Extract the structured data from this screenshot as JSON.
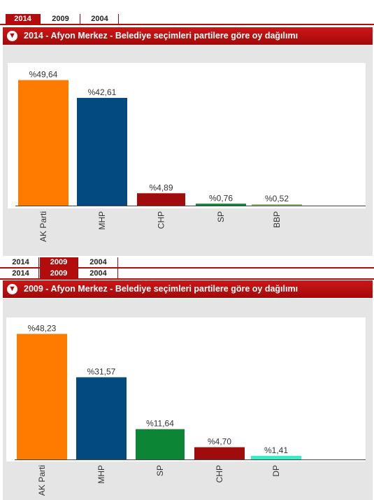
{
  "tabs": [
    {
      "label": "2014"
    },
    {
      "label": "2009"
    },
    {
      "label": "2004"
    }
  ],
  "charts": [
    {
      "title": "2014 - Afyon Merkez - Belediye seçimleri partilere göre oy dağılımı"
    },
    {
      "title": "2009 - Afyon Merkez - Belediye seçimleri partilere göre oy dağılımı"
    }
  ],
  "colors": {
    "header": "#b30c0c",
    "ak_parti": "#ff7b00",
    "mhp": "#034a80",
    "chp": "#a00c0c",
    "sp": "#0c8534",
    "bbp": "#8fba7a",
    "dp": "#33f0c4"
  },
  "chart_data": [
    {
      "type": "bar",
      "title": "2014 - Afyon Merkez - Belediye seçimleri partilere göre oy dağılımı",
      "categories": [
        "AK Parti",
        "MHP",
        "CHP",
        "SP",
        "BBP"
      ],
      "values": [
        49.64,
        42.61,
        4.89,
        0.76,
        0.52
      ],
      "labels": [
        "%49,64",
        "%42,61",
        "%4,89",
        "%0,76",
        "%0,52"
      ],
      "colors": [
        "#ff7b00",
        "#034a80",
        "#a00c0c",
        "#0c8534",
        "#8fba7a"
      ],
      "ylim": [
        0,
        52
      ],
      "grid": false
    },
    {
      "type": "bar",
      "title": "2009 - Afyon Merkez - Belediye seçimleri partilere göre oy dağılımı",
      "categories": [
        "AK Parti",
        "MHP",
        "SP",
        "CHP",
        "DP"
      ],
      "values": [
        48.23,
        31.57,
        11.64,
        4.7,
        1.41
      ],
      "labels": [
        "%48,23",
        "%31,57",
        "%11,64",
        "%4,70",
        "%1,41"
      ],
      "colors": [
        "#ff7b00",
        "#034a80",
        "#0c8534",
        "#a00c0c",
        "#33f0c4"
      ],
      "ylim": [
        0,
        50.5
      ],
      "grid": false
    }
  ]
}
